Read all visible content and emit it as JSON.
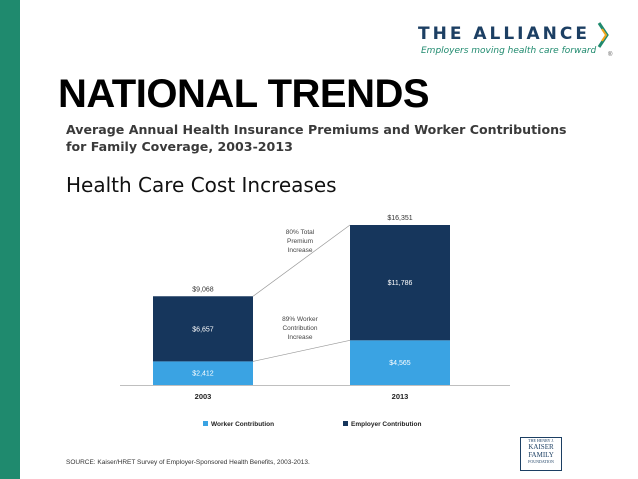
{
  "slide": {
    "title": "NATIONAL TRENDS",
    "subtitle": "Average Annual Health Insurance Premiums and Worker Contributions for Family Coverage, 2003-2013",
    "section_title": "Health Care Cost Increases",
    "source": "SOURCE:  Kaiser/HRET Survey of Employer-Sponsored Health Benefits, 2003-2013."
  },
  "logo": {
    "name": "THE ALLIANCE",
    "tagline": "Employers moving health care forward",
    "reg_mark": "®"
  },
  "kff_logo": {
    "line1": "THE HENRY J.",
    "line2": "KAISER",
    "line3": "FAMILY",
    "line4": "FOUNDATION"
  },
  "colors": {
    "accent_green": "#1f8a6e",
    "navy": "#1c3f63",
    "employer": "#16365c",
    "worker": "#3aa3e3"
  },
  "chart_data": {
    "type": "bar",
    "stacked": true,
    "categories": [
      "2003",
      "2013"
    ],
    "series": [
      {
        "name": "Worker Contribution",
        "values": [
          2412,
          4565
        ],
        "labels": [
          "$2,412",
          "$4,565"
        ],
        "color": "#3aa3e3"
      },
      {
        "name": "Employer Contribution",
        "values": [
          6657,
          11786
        ],
        "labels": [
          "$6,657",
          "$11,786"
        ],
        "color": "#16365c"
      }
    ],
    "totals": [
      9068,
      16351
    ],
    "total_labels": [
      "$9,068",
      "$16,351"
    ],
    "annotations": [
      {
        "text": "80% Total\nPremium\nIncrease"
      },
      {
        "text": "89% Worker\nContribution\nIncrease"
      }
    ],
    "legend_position": "bottom",
    "grid": false
  }
}
